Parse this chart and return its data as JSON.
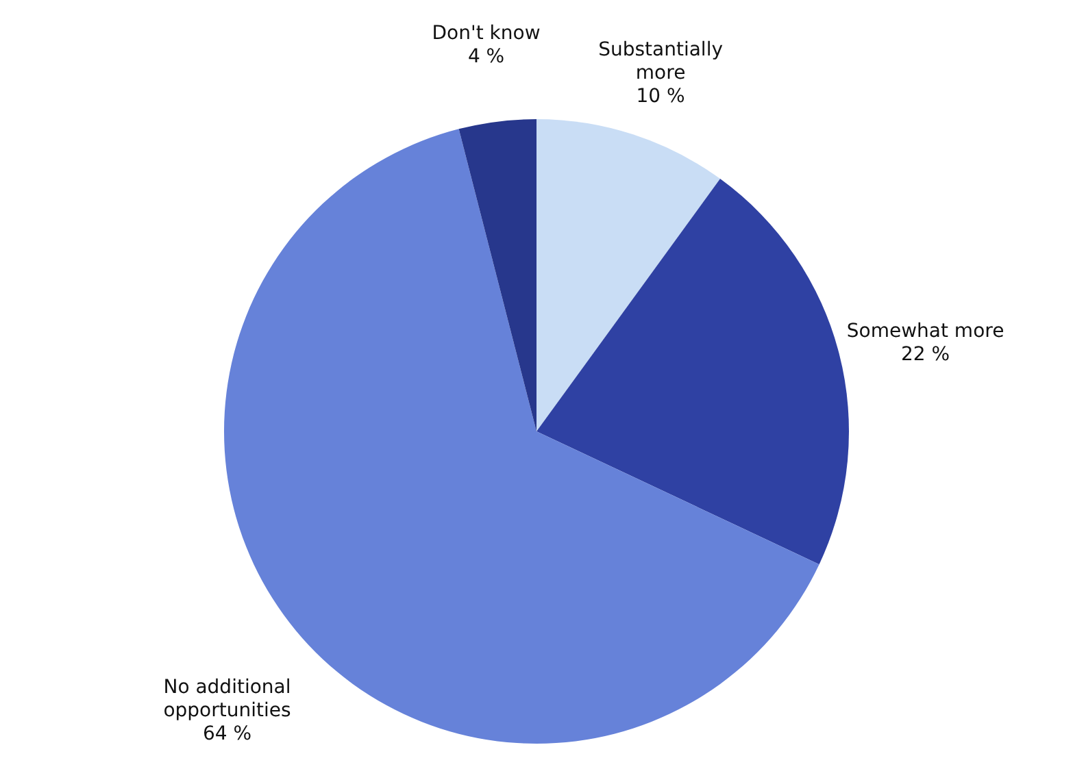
{
  "chart_data": {
    "type": "pie",
    "categories": [
      "Substantially more",
      "Somewhat more",
      "No additional opportunities",
      "Don't know"
    ],
    "values": [
      10,
      22,
      64,
      4
    ],
    "value_labels": [
      "10 %",
      "22 %",
      "64 %",
      "4 %"
    ],
    "colors": [
      "#c9ddf5",
      "#2f41a3",
      "#6682d9",
      "#27378c"
    ]
  }
}
